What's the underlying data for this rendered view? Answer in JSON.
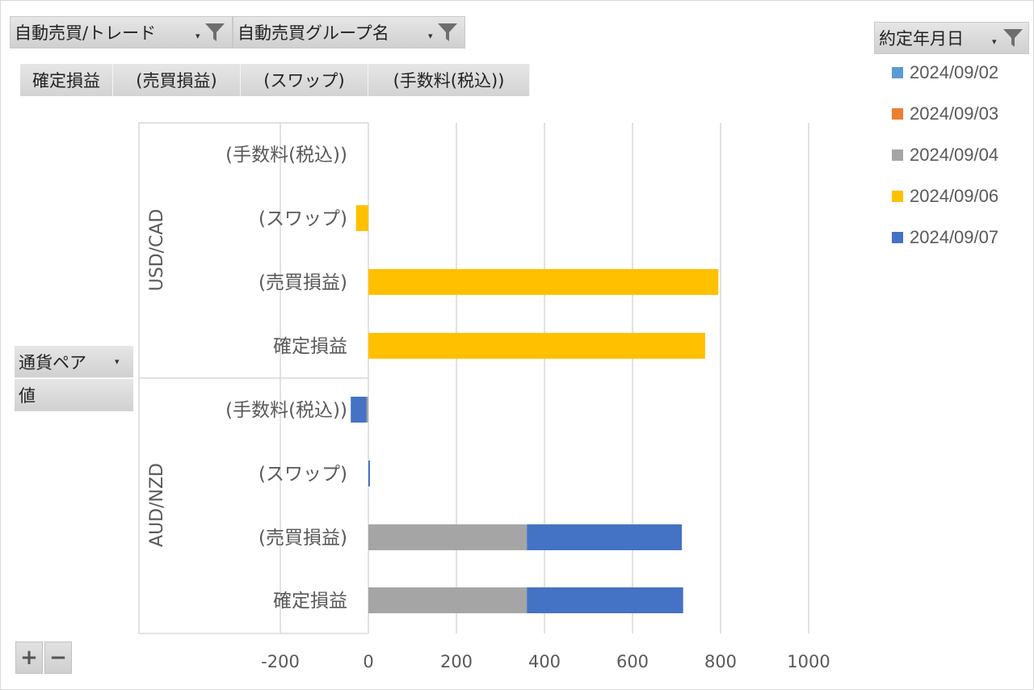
{
  "filters": {
    "auto_trade": "自動売買/トレード",
    "auto_group": "自動売買グループ名",
    "date": "約定年月日"
  },
  "values_bar": [
    "確定損益",
    "(売買損益)",
    "(スワップ)",
    "(手数料(税込))"
  ],
  "row_field": {
    "currency_pair": "通貨ペア",
    "value": "値"
  },
  "zoom": {
    "plus": "+",
    "minus": "−"
  },
  "colors": {
    "2024/09/02": "#5b9bd5",
    "2024/09/03": "#ed7d31",
    "2024/09/04": "#a5a5a5",
    "2024/09/06": "#ffc000",
    "2024/09/07": "#4472c4",
    "grid": "#d9d9d9",
    "axis_text": "#595959"
  },
  "chart_data": {
    "type": "bar",
    "orientation": "horizontal",
    "stacked": true,
    "groups": [
      {
        "name": "USD/CAD",
        "categories": [
          "(手数料(税込))",
          "(スワップ)",
          "(売買損益)",
          "確定損益"
        ]
      },
      {
        "name": "AUD/NZD",
        "categories": [
          "(手数料(税込))",
          "(スワップ)",
          "(売買損益)",
          "確定損益"
        ]
      }
    ],
    "series": [
      {
        "name": "2024/09/02",
        "values": [
          0,
          0,
          0,
          0,
          0,
          0,
          0,
          0
        ]
      },
      {
        "name": "2024/09/03",
        "values": [
          0,
          0,
          0,
          0,
          0,
          0,
          0,
          0
        ]
      },
      {
        "name": "2024/09/04",
        "values": [
          0,
          0,
          0,
          0,
          -4,
          0,
          360,
          360
        ]
      },
      {
        "name": "2024/09/06",
        "values": [
          0,
          -28,
          795,
          765,
          0,
          0,
          0,
          0
        ]
      },
      {
        "name": "2024/09/07",
        "values": [
          0,
          0,
          0,
          0,
          -36,
          3,
          352,
          355
        ]
      }
    ],
    "x_ticks": [
      "-200",
      "0",
      "200",
      "400",
      "600",
      "800",
      "1000"
    ],
    "xlim": [
      -200,
      1000
    ],
    "legend_position": "right",
    "grid": true
  }
}
